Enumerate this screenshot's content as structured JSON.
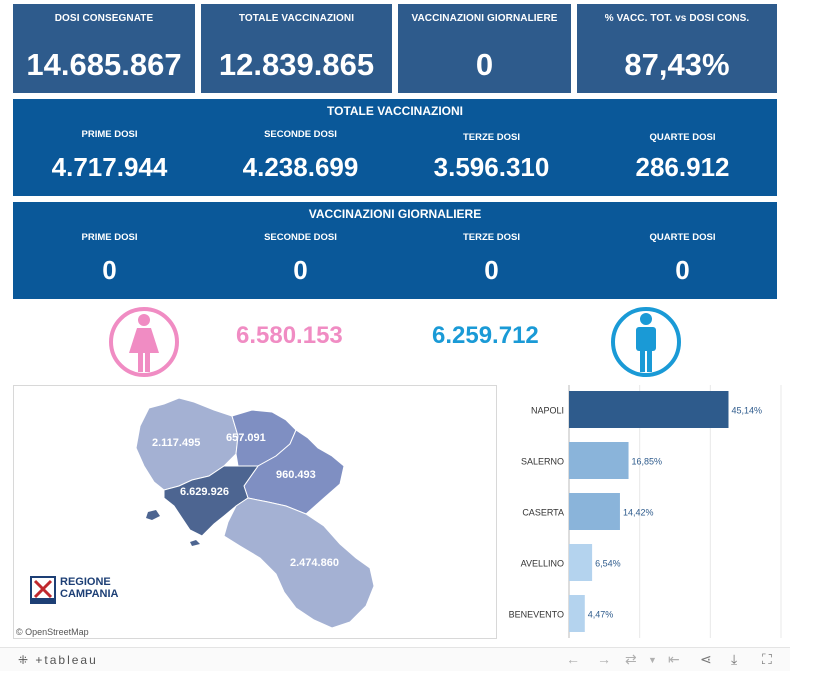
{
  "kpis": [
    {
      "label": "DOSI  CONSEGNATE",
      "value": "14.685.867"
    },
    {
      "label": "TOTALE VACCINAZIONI",
      "value": "12.839.865"
    },
    {
      "label": "VACCINAZIONI GIORNALIERE",
      "value": "0"
    },
    {
      "label": "% VACC. TOT. vs DOSI CONS.",
      "value": "87,43%"
    }
  ],
  "totale_panel": {
    "title": "TOTALE VACCINAZIONI",
    "cols": [
      {
        "label": "PRIME DOSI",
        "value": "4.717.944"
      },
      {
        "label": "SECONDE DOSI",
        "value": "4.238.699"
      },
      {
        "label": "TERZE DOSI",
        "value": "3.596.310"
      },
      {
        "label": "QUARTE DOSI",
        "value": "286.912"
      }
    ]
  },
  "giornaliere_panel": {
    "title": "VACCINAZIONI GIORNALIERE",
    "cols": [
      {
        "label": "PRIME DOSI",
        "value": "0"
      },
      {
        "label": "SECONDE DOSI",
        "value": "0"
      },
      {
        "label": "TERZE DOSI",
        "value": "0"
      },
      {
        "label": "QUARTE DOSI",
        "value": "0"
      }
    ]
  },
  "gender": {
    "female_value": "6.580.153",
    "male_value": "6.259.712",
    "female_color": "#f08cc3",
    "male_color": "#1a9ad6"
  },
  "map": {
    "regions": [
      {
        "name": "Caserta",
        "value": "2.117.495"
      },
      {
        "name": "Benevento",
        "value": "657.091"
      },
      {
        "name": "Avellino",
        "value": "960.493"
      },
      {
        "name": "Napoli",
        "value": "6.629.926"
      },
      {
        "name": "Salerno",
        "value": "2.474.860"
      }
    ],
    "attribution": "© OpenStreetMap",
    "logo_line1": "REGIONE",
    "logo_line2": "CAMPANIA"
  },
  "chart_data": {
    "type": "bar",
    "orientation": "horizontal",
    "categories": [
      "NAPOLI",
      "SALERNO",
      "CASERTA",
      "AVELLINO",
      "BENEVENTO"
    ],
    "values": [
      45.14,
      16.85,
      14.42,
      6.54,
      4.47
    ],
    "value_labels": [
      "45,14%",
      "16,85%",
      "14,42%",
      "6,54%",
      "4,47%"
    ],
    "colors": [
      "#2e5b8c",
      "#8ab4da",
      "#8ab4da",
      "#b4d3ee",
      "#b4d3ee"
    ],
    "xlim": [
      0,
      60
    ]
  },
  "footer": {
    "brand": "+tableau",
    "icons": [
      "undo-icon",
      "redo-icon",
      "revert-icon",
      "reset-icon",
      "share-icon",
      "download-icon",
      "fullscreen-icon"
    ]
  }
}
